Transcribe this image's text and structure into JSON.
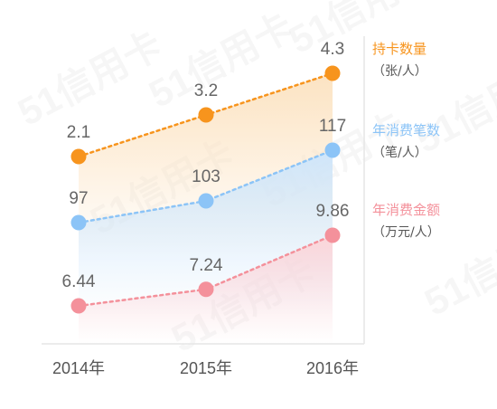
{
  "chart_data": {
    "type": "line",
    "categories": [
      "2014年",
      "2015年",
      "2016年"
    ],
    "series": [
      {
        "name": "持卡数量",
        "unit": "（张/人）",
        "values_label": [
          "2.1",
          "3.2",
          "4.3"
        ],
        "values": [
          2.1,
          3.2,
          4.3
        ],
        "color": "#F7941D",
        "fill": "#FCE3C2"
      },
      {
        "name": "年消费笔数",
        "unit": "（笔/人）",
        "values_label": [
          "97",
          "103",
          "117"
        ],
        "values": [
          97,
          103,
          117
        ],
        "color": "#8CC4F7",
        "fill": "#CFE6FB"
      },
      {
        "name": "年消费金额",
        "unit": "（万元/人）",
        "values_label": [
          "6.44",
          "7.24",
          "9.86"
        ],
        "values": [
          6.44,
          7.24,
          9.86
        ],
        "color": "#F4919B",
        "fill": "#FBD5D9"
      }
    ],
    "title": "",
    "xlabel": "",
    "ylabel": "",
    "grid": false,
    "legend_position": "right"
  },
  "watermark": "51信用卡"
}
